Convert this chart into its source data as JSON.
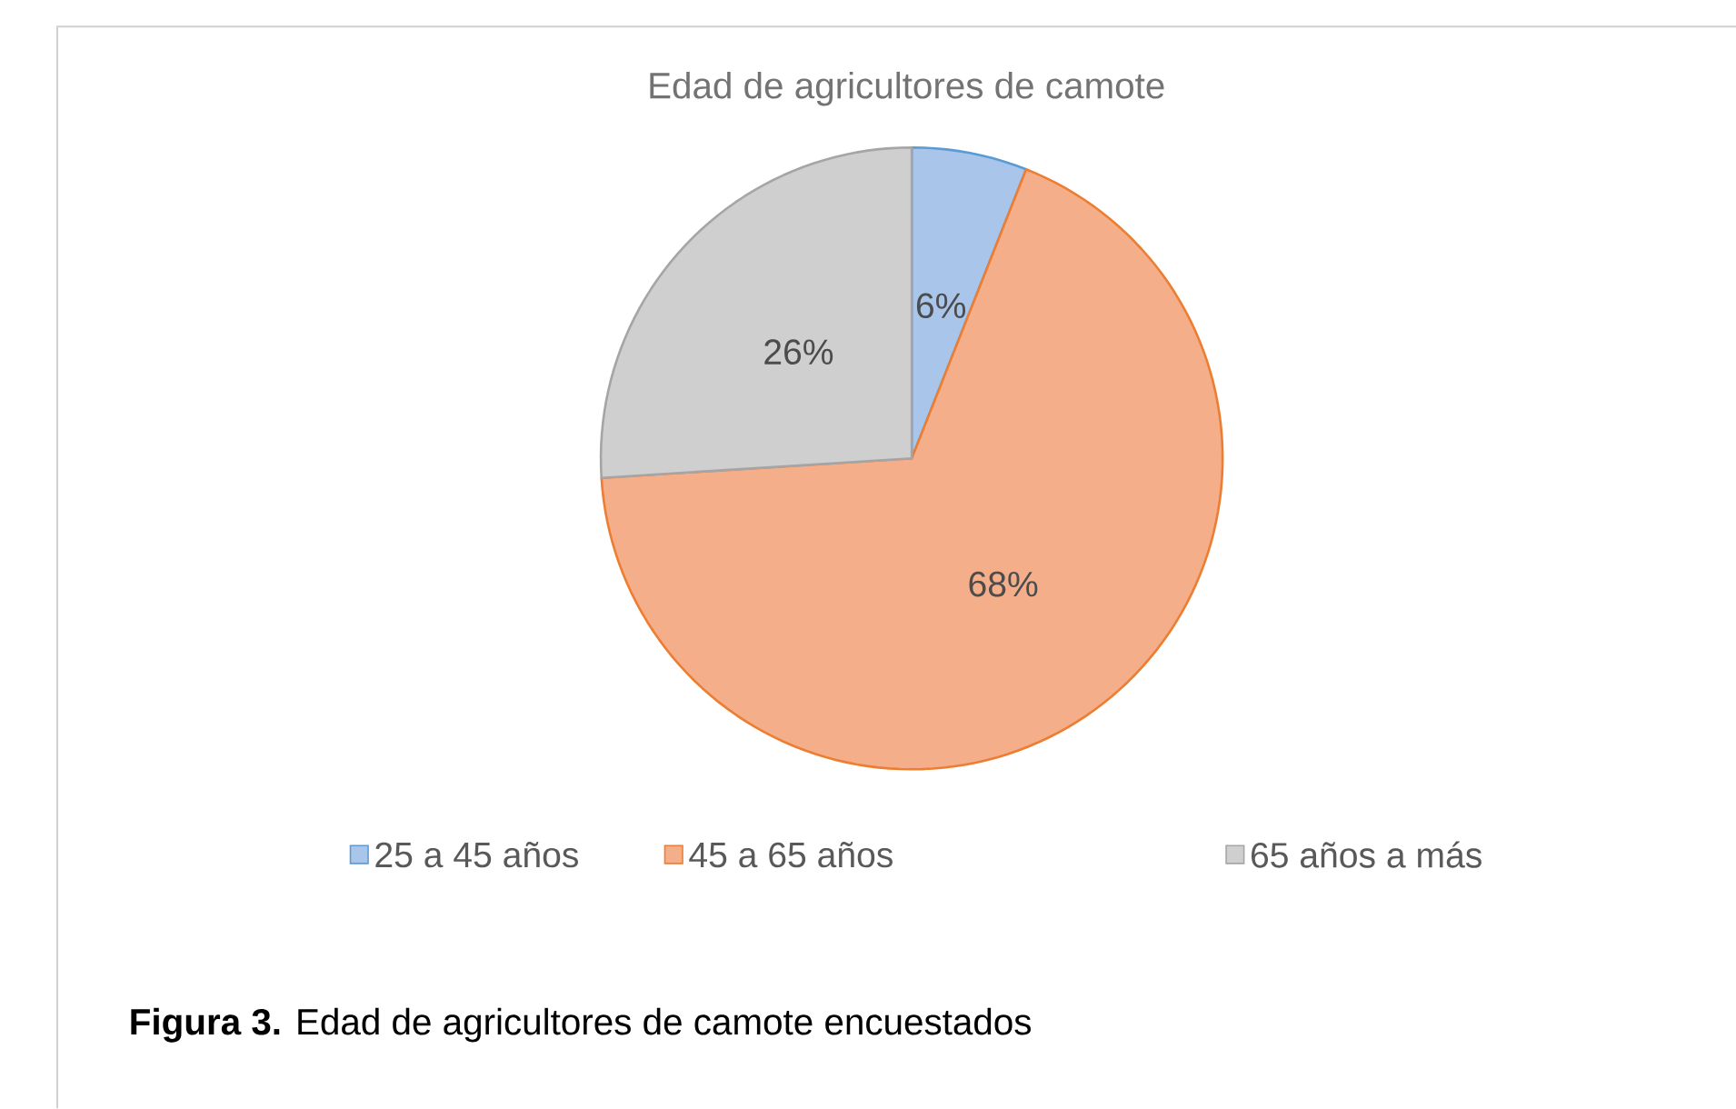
{
  "chart_data": {
    "type": "pie",
    "title": "Edad de agricultores de camote",
    "categories": [
      "25 a 45 años",
      "45 a 65 años",
      "65 años a más"
    ],
    "values": [
      6,
      68,
      26
    ],
    "colors": [
      "#a9c5ea",
      "#f5ae8a",
      "#cfcfcf"
    ],
    "value_labels": [
      "6%",
      "68%",
      "26%"
    ],
    "legend": "bottom",
    "annotations": [
      "**Figura 3.** Edad de agricultores de camote encuestados"
    ]
  }
}
